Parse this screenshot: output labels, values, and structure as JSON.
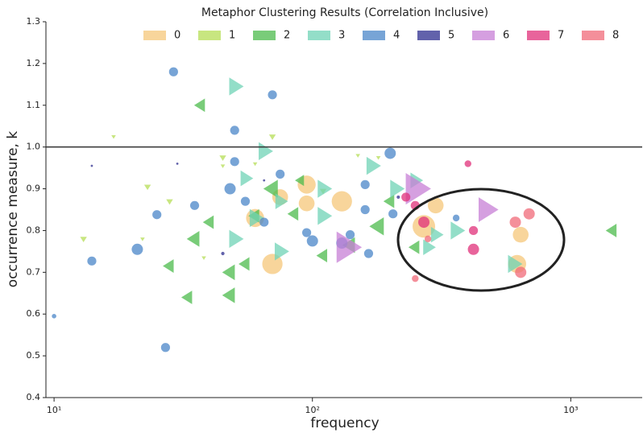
{
  "chart_data": {
    "type": "scatter",
    "title": "Metaphor Clustering Results (Correlation Inclusive)",
    "x_label": "frequency",
    "y_label": "occurrence measure, k",
    "x_scale": "log",
    "xlim": [
      9.3,
      1890
    ],
    "ylim": [
      0.4,
      1.3
    ],
    "xticks": [
      {
        "value": 10,
        "label": "10¹"
      },
      {
        "value": 100,
        "label": "10²"
      },
      {
        "value": 1000,
        "label": "10³"
      }
    ],
    "yticks": [
      0.4,
      0.5,
      0.6,
      0.7,
      0.8,
      0.9,
      {
        "value": 1,
        "label": "1.0"
      },
      1.1,
      1.2,
      1.3
    ],
    "hline": 1,
    "legend": "top",
    "series": [
      {
        "name": "0",
        "color": "#f5c77a",
        "marker": "circle",
        "x": [
          95,
          130,
          70,
          60,
          75,
          95,
          640,
          620,
          270,
          300
        ],
        "values": [
          0.91,
          0.87,
          0.72,
          0.83,
          0.88,
          0.865,
          0.79,
          0.72,
          0.81,
          0.86
        ],
        "sizes": [
          8,
          9,
          9,
          8,
          7,
          7,
          7,
          8,
          10,
          7
        ]
      },
      {
        "name": "1",
        "color": "#b5dd55",
        "marker": "triangle-down",
        "x": [
          17,
          45,
          70,
          45,
          60,
          23,
          28,
          13,
          22,
          38,
          110,
          180,
          150
        ],
        "values": [
          1.025,
          0.975,
          1.025,
          0.955,
          0.96,
          0.905,
          0.87,
          0.78,
          0.78,
          0.735,
          0.895,
          0.975,
          0.98
        ],
        "sizes": [
          2,
          3,
          3,
          2,
          2,
          3,
          3,
          3,
          2,
          2,
          3,
          2,
          2
        ]
      },
      {
        "name": "2",
        "color": "#4cbb4c",
        "marker": "triangle-left",
        "x": [
          37,
          28,
          33,
          35,
          40,
          48,
          48,
          55,
          70,
          60,
          85,
          140,
          180,
          200,
          250,
          1450,
          90,
          110
        ],
        "values": [
          1.1,
          0.715,
          0.64,
          0.78,
          0.82,
          0.7,
          0.645,
          0.72,
          0.9,
          0.835,
          0.84,
          0.765,
          0.81,
          0.87,
          0.76,
          0.8,
          0.92,
          0.74
        ],
        "sizes": [
          6,
          6,
          6,
          7,
          6,
          7,
          7,
          6,
          8,
          6,
          6,
          7,
          8,
          6,
          6,
          6,
          5,
          6
        ]
      },
      {
        "name": "3",
        "color": "#6fd3b5",
        "marker": "triangle-right",
        "x": [
          50,
          65,
          50,
          55,
          60,
          75,
          110,
          110,
          170,
          210,
          280,
          300,
          360,
          600,
          75,
          250
        ],
        "values": [
          1.145,
          0.99,
          0.78,
          0.925,
          0.83,
          0.75,
          0.9,
          0.835,
          0.955,
          0.9,
          0.76,
          0.79,
          0.8,
          0.72,
          0.87,
          0.92
        ],
        "sizes": [
          8,
          8,
          8,
          7,
          8,
          8,
          8,
          8,
          8,
          8,
          7,
          7,
          8,
          8,
          7,
          7
        ]
      },
      {
        "name": "4",
        "color": "#4a86c8",
        "marker": "circle",
        "x": [
          29,
          70,
          50,
          50,
          14,
          21,
          25,
          35,
          48,
          55,
          65,
          75,
          95,
          100,
          130,
          140,
          160,
          160,
          165,
          200,
          205,
          360,
          27,
          10
        ],
        "values": [
          1.18,
          1.125,
          1.04,
          0.965,
          0.727,
          0.755,
          0.838,
          0.86,
          0.9,
          0.87,
          0.82,
          0.935,
          0.795,
          0.775,
          0.77,
          0.79,
          0.91,
          0.85,
          0.745,
          0.985,
          0.84,
          0.83,
          0.52,
          0.595
        ],
        "sizes": [
          4,
          4,
          4,
          4,
          4,
          5,
          4,
          4,
          5,
          4,
          4,
          4,
          4,
          5,
          5,
          4,
          4,
          4,
          4,
          5,
          4,
          3,
          4,
          2
        ]
      },
      {
        "name": "5",
        "color": "#2e2e8f",
        "marker": "circle",
        "x": [
          14,
          30,
          45,
          65,
          215
        ],
        "values": [
          0.955,
          0.96,
          0.745,
          0.92,
          0.88
        ],
        "sizes": [
          1,
          1,
          1.5,
          1,
          1.5
        ]
      },
      {
        "name": "6",
        "color": "#c77fd6",
        "marker": "triangle-right",
        "x": [
          135,
          250,
          470
        ],
        "values": [
          0.76,
          0.9,
          0.85
        ],
        "sizes": [
          14,
          14,
          11
        ]
      },
      {
        "name": "7",
        "color": "#e0307a",
        "marker": "circle",
        "x": [
          270,
          400,
          420,
          230,
          250,
          420
        ],
        "values": [
          0.82,
          0.96,
          0.755,
          0.88,
          0.86,
          0.8
        ],
        "sizes": [
          5,
          3,
          5,
          4,
          4,
          4
        ]
      },
      {
        "name": "8",
        "color": "#f06a78",
        "marker": "circle",
        "x": [
          610,
          690,
          640,
          250,
          280
        ],
        "values": [
          0.82,
          0.84,
          0.7,
          0.685,
          0.78
        ],
        "sizes": [
          5,
          5,
          5,
          3,
          3
        ]
      }
    ]
  }
}
